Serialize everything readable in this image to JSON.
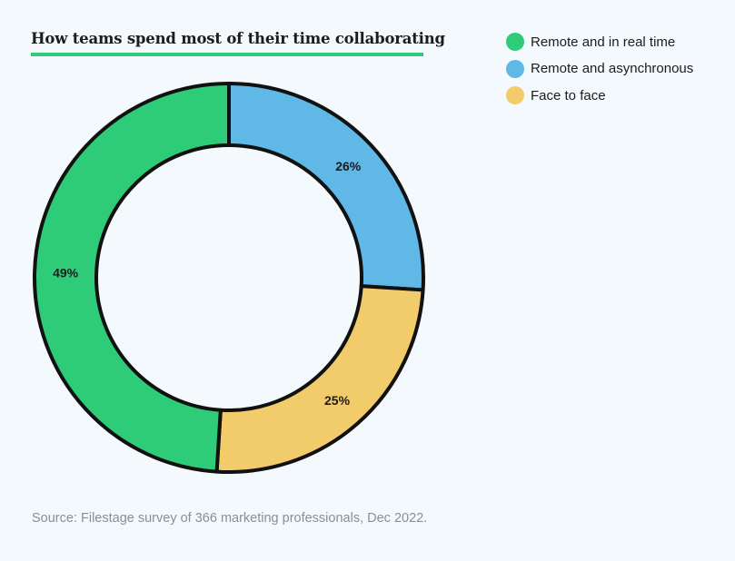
{
  "title": "How teams spend most of their time collaborating",
  "source": "Source: Filestage survey of 366 marketing professionals, Dec 2022.",
  "colors": {
    "underline": "#2ecc78",
    "background": "#f4f9fd"
  },
  "legend": [
    {
      "label": "Remote and in real time",
      "color": "#2ecc78"
    },
    {
      "label": "Remote and asynchronous",
      "color": "#5fb8e6"
    },
    {
      "label": "Face to face",
      "color": "#f2cc6b"
    }
  ],
  "chart_data": {
    "type": "pie",
    "variant": "donut",
    "title": "How teams spend most of their time collaborating",
    "legend_position": "top-right",
    "slices": [
      {
        "name": "Remote and asynchronous",
        "value": 26,
        "label": "26%",
        "color": "#5fb8e6"
      },
      {
        "name": "Face to face",
        "value": 25,
        "label": "25%",
        "color": "#f2cc6b"
      },
      {
        "name": "Remote and in real time",
        "value": 49,
        "label": "49%",
        "color": "#2ecc78"
      }
    ]
  }
}
